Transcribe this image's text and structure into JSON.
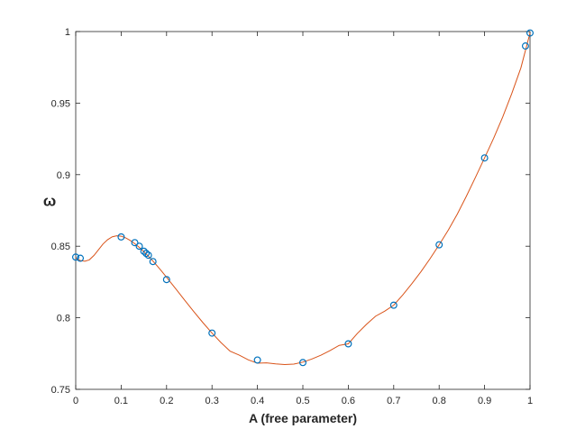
{
  "chart_data": {
    "type": "scatter",
    "title": "",
    "xlabel": "A (free parameter)",
    "ylabel": "ω",
    "xlim": [
      0,
      1
    ],
    "ylim": [
      0.75,
      1
    ],
    "x_ticks": [
      0,
      0.1,
      0.2,
      0.3,
      0.4,
      0.5,
      0.6,
      0.7,
      0.8,
      0.9,
      1
    ],
    "x_tick_labels": [
      "0",
      "0.1",
      "0.2",
      "0.3",
      "0.4",
      "0.5",
      "0.6",
      "0.7",
      "0.8",
      "0.9",
      "1"
    ],
    "y_ticks": [
      0.75,
      0.8,
      0.85,
      0.9,
      0.95,
      1
    ],
    "y_tick_labels": [
      "0.75",
      "0.8",
      "0.85",
      "0.9",
      "0.95",
      "1"
    ],
    "grid": false,
    "legend": "none",
    "series": [
      {
        "kind": "markers",
        "marker": "open-circle",
        "color": "#0072BD",
        "x": [
          0,
          0.01,
          0.1,
          0.13,
          0.14,
          0.15,
          0.155,
          0.16,
          0.17,
          0.2,
          0.3,
          0.4,
          0.5,
          0.6,
          0.7,
          0.8,
          0.9,
          0.99,
          1
        ],
        "y": [
          0.8424,
          0.8416,
          0.8565,
          0.8525,
          0.85,
          0.8465,
          0.845,
          0.8437,
          0.8393,
          0.8267,
          0.7893,
          0.7705,
          0.7687,
          0.7818,
          0.8088,
          0.851,
          0.9117,
          0.9899,
          0.999
        ]
      },
      {
        "kind": "line",
        "color": "#D95319",
        "x": [
          0,
          0.01,
          0.02,
          0.03,
          0.04,
          0.05,
          0.06,
          0.07,
          0.08,
          0.09,
          0.1,
          0.11,
          0.12,
          0.13,
          0.14,
          0.15,
          0.16,
          0.17,
          0.18,
          0.19,
          0.2,
          0.22,
          0.24,
          0.26,
          0.28,
          0.3,
          0.32,
          0.34,
          0.36,
          0.38,
          0.4,
          0.42,
          0.44,
          0.46,
          0.48,
          0.5,
          0.52,
          0.54,
          0.56,
          0.58,
          0.6,
          0.62,
          0.64,
          0.66,
          0.68,
          0.7,
          0.72,
          0.74,
          0.76,
          0.78,
          0.8,
          0.82,
          0.84,
          0.86,
          0.88,
          0.9,
          0.92,
          0.94,
          0.96,
          0.98,
          1
        ],
        "y": [
          0.8418,
          0.84,
          0.8395,
          0.8405,
          0.8435,
          0.8475,
          0.8515,
          0.8545,
          0.8565,
          0.8573,
          0.857,
          0.8558,
          0.854,
          0.8518,
          0.8492,
          0.8462,
          0.843,
          0.8396,
          0.836,
          0.8322,
          0.8283,
          0.8203,
          0.8122,
          0.8043,
          0.7966,
          0.7893,
          0.7826,
          0.7766,
          0.7739,
          0.7706,
          0.7683,
          0.7685,
          0.7678,
          0.7673,
          0.7676,
          0.769,
          0.7712,
          0.7739,
          0.7771,
          0.7807,
          0.7818,
          0.7891,
          0.7954,
          0.8011,
          0.8046,
          0.8088,
          0.816,
          0.8239,
          0.8322,
          0.8413,
          0.851,
          0.8612,
          0.8725,
          0.885,
          0.8982,
          0.9117,
          0.9255,
          0.9404,
          0.9568,
          0.9747,
          0.999
        ]
      }
    ]
  }
}
